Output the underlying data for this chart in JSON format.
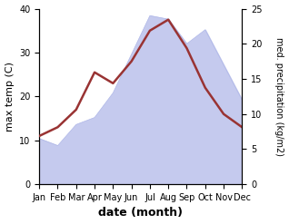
{
  "months": [
    "Jan",
    "Feb",
    "Mar",
    "Apr",
    "May",
    "Jun",
    "Jul",
    "Aug",
    "Sep",
    "Oct",
    "Nov",
    "Dec"
  ],
  "month_indices": [
    0,
    1,
    2,
    3,
    4,
    5,
    6,
    7,
    8,
    9,
    10,
    11
  ],
  "temperature": [
    11,
    13,
    17,
    25.5,
    23,
    28,
    35,
    37.5,
    31,
    22,
    16,
    13
  ],
  "precipitation": [
    6.5,
    5.5,
    8.5,
    9.5,
    13,
    18.5,
    24,
    23.5,
    20,
    22,
    17,
    12
  ],
  "temp_color": "#993333",
  "precip_fill_color": "#c5caee",
  "precip_edge_color": "#b0b8e8",
  "xlabel": "date (month)",
  "ylabel_left": "max temp (C)",
  "ylabel_right": "med. precipitation (kg/m2)",
  "ylim_left": [
    0,
    40
  ],
  "ylim_right": [
    0,
    25
  ],
  "bg_color": "#ffffff"
}
